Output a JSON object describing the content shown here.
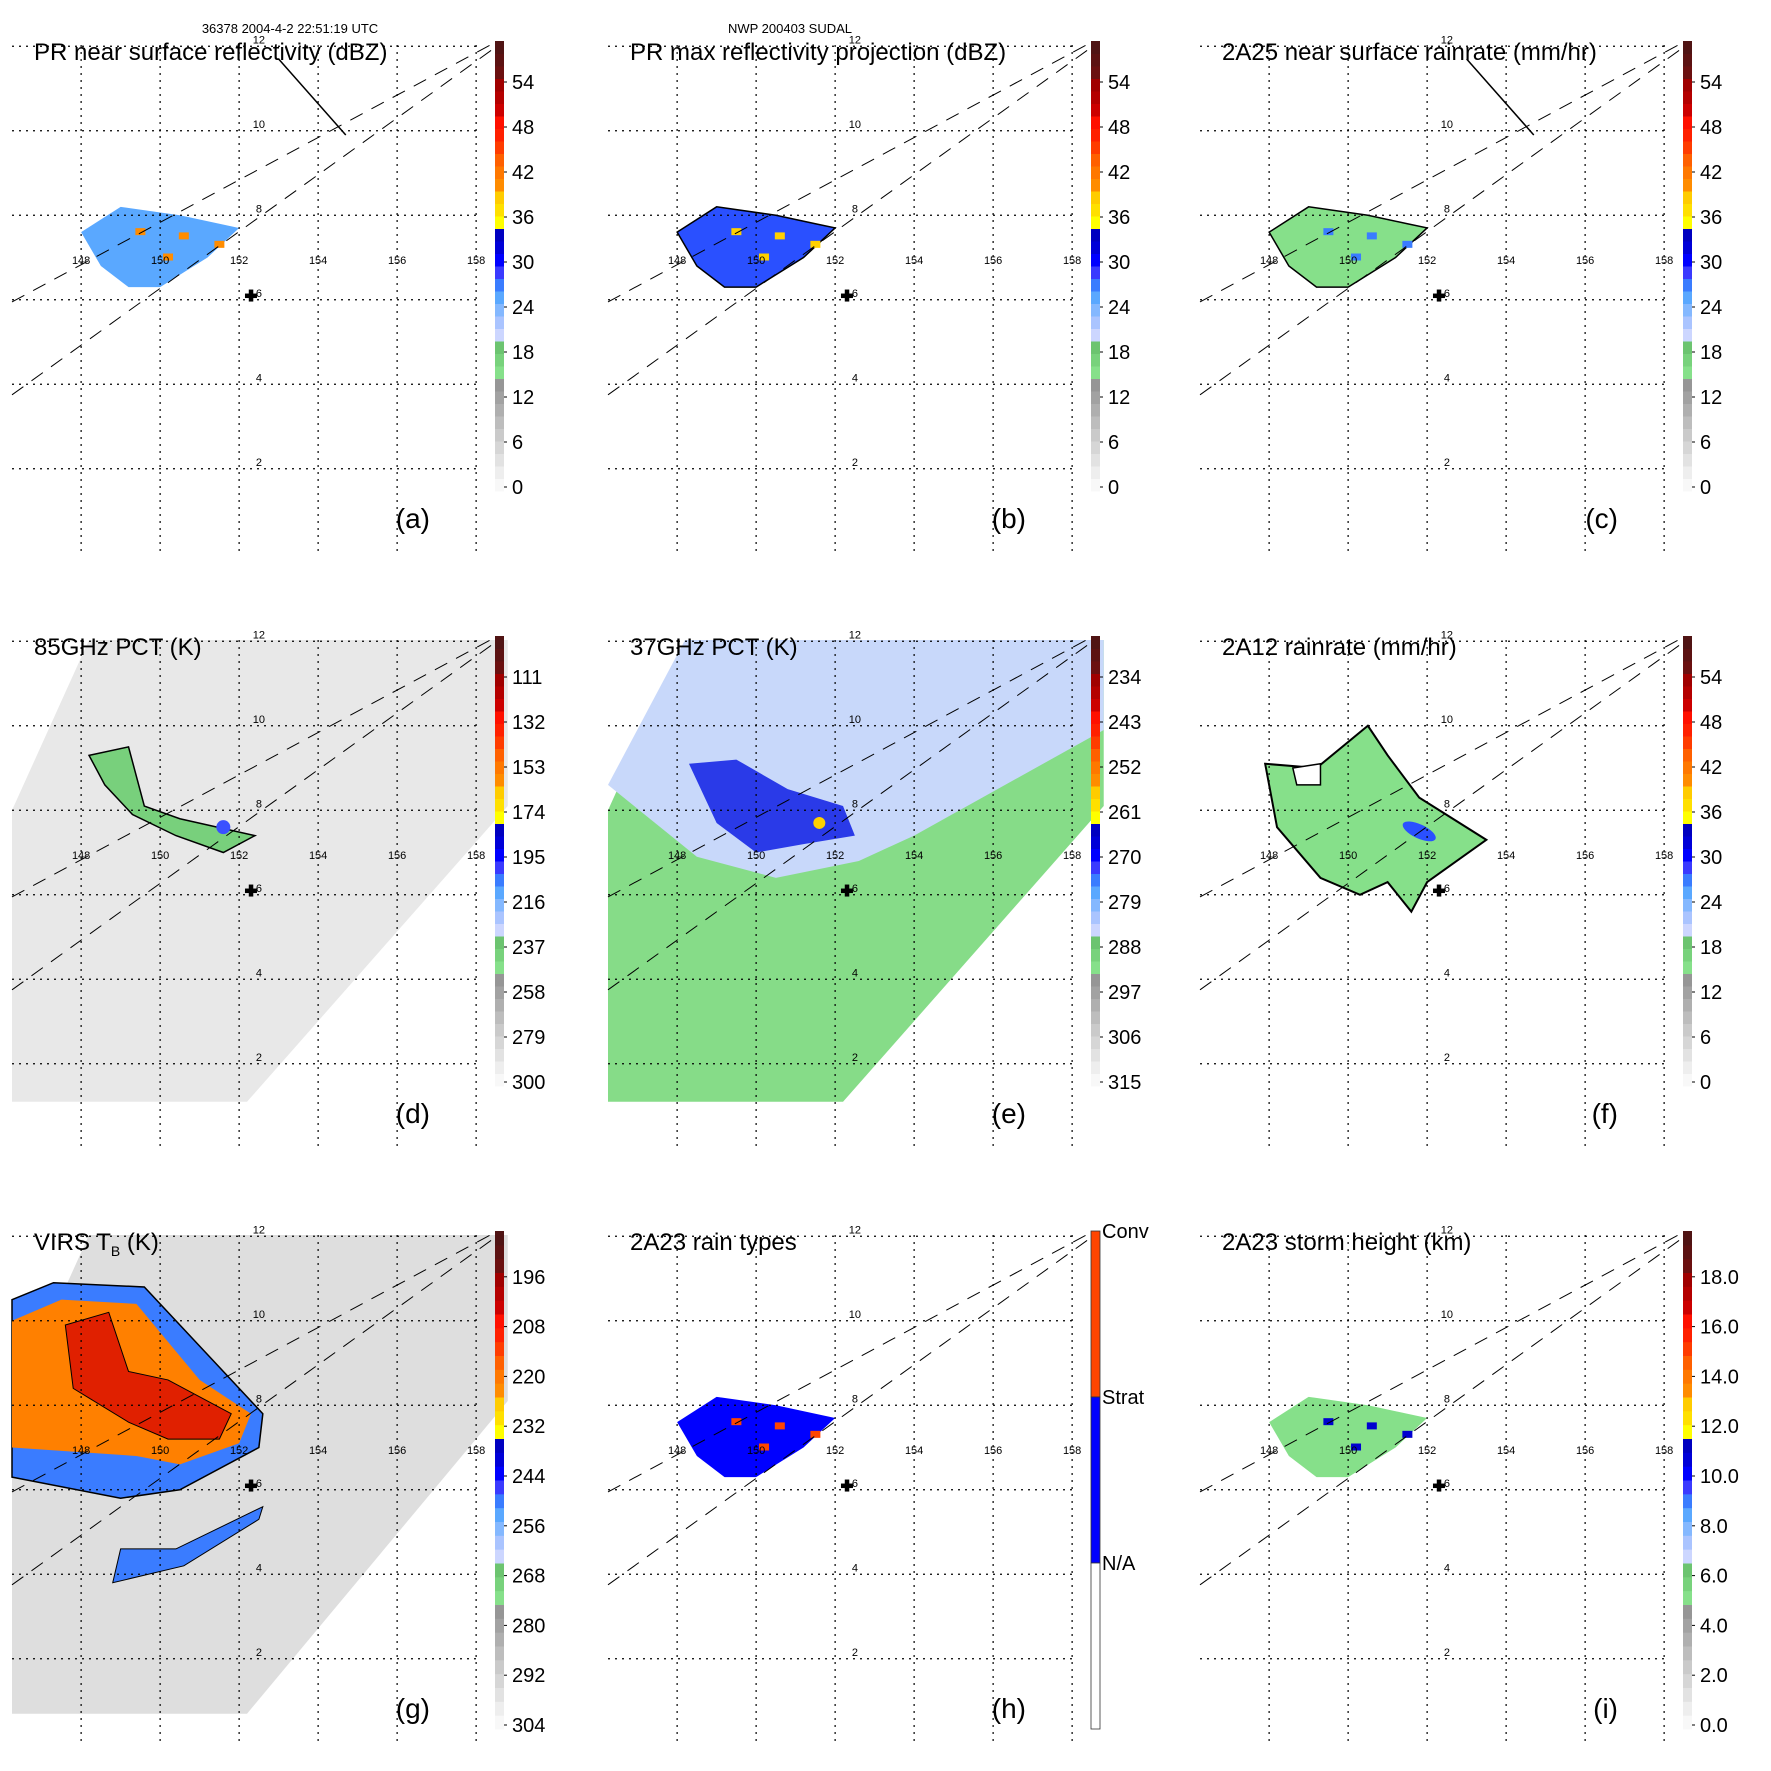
{
  "header": {
    "left": "36378 2004-4-2 22:51:19 UTC",
    "center": "NWP 200403 SUDAL"
  },
  "map_grid": {
    "lon_ticks": [
      "148",
      "150",
      "152",
      "154",
      "156",
      "158"
    ],
    "lat_ticks": [
      "12",
      "10",
      "8",
      "6",
      "4",
      "2"
    ],
    "lon_values": [
      148,
      150,
      152,
      154,
      156,
      158
    ],
    "lat_values": [
      12,
      10,
      8,
      6,
      4,
      2
    ],
    "lon_range": [
      146.25,
      158.8
    ],
    "lat_range": [
      0.7,
      12.2
    ],
    "storm_center_marker": {
      "lon": 152.3,
      "lat": 6.1,
      "symbol": "+"
    },
    "swath_edges": [
      {
        "from": [
          146.2,
          5.9
        ],
        "to": [
          158.6,
          12.1
        ]
      },
      {
        "from": [
          146.2,
          3.8
        ],
        "to": [
          158.6,
          12.1
        ]
      }
    ]
  },
  "chart_data": [
    {
      "type": "heatmap",
      "id": "a",
      "panel_label": "(a)",
      "title": "PR near surface reflectivity (dBZ)",
      "colorbar": {
        "ticks": [
          "54",
          "48",
          "42",
          "36",
          "30",
          "24",
          "18",
          "12",
          "6",
          "0"
        ],
        "tick_values": [
          54,
          48,
          42,
          36,
          30,
          24,
          18,
          12,
          6,
          0
        ],
        "range": [
          0,
          60
        ],
        "segments": [
          {
            "from": 0,
            "to": 16,
            "color_stops": [
              "#f7f7f7",
              "#969696"
            ]
          },
          {
            "from": 16,
            "to": 20,
            "color_stops": [
              "#86e08a",
              "#69bd6d"
            ]
          },
          {
            "from": 20,
            "to": 34,
            "color_stops": [
              "#ccd6ff",
              "#3a3aff"
            ]
          },
          {
            "from": 34,
            "to": 35.5,
            "color_stops": [
              "#0000ff",
              "#0000c8"
            ]
          },
          {
            "from": 35.5,
            "to": 40,
            "color_stops": [
              "#ffff00",
              "#ffcc00"
            ]
          },
          {
            "from": 40,
            "to": 44,
            "color_stops": [
              "#ff8c00",
              "#ff7000"
            ]
          },
          {
            "from": 44,
            "to": 49,
            "color_stops": [
              "#ff4000",
              "#ff1a00"
            ]
          },
          {
            "from": 49,
            "to": 55,
            "color_stops": [
              "#cc0000",
              "#aa0000"
            ]
          },
          {
            "from": 55,
            "to": 60,
            "color_stops": [
              "#6b1010",
              "#551515"
            ]
          }
        ]
      },
      "cross_section_line": {
        "from": [
          153.0,
          11.7
        ],
        "to": [
          154.7,
          9.9
        ]
      }
    },
    {
      "type": "heatmap",
      "id": "b",
      "panel_label": "(b)",
      "title": "PR max reflectivity projection (dBZ)",
      "colorbar": {
        "ticks": [
          "54",
          "48",
          "42",
          "36",
          "30",
          "24",
          "18",
          "12",
          "6",
          "0"
        ],
        "tick_values": [
          54,
          48,
          42,
          36,
          30,
          24,
          18,
          12,
          6,
          0
        ],
        "range": [
          0,
          60
        ]
      }
    },
    {
      "type": "heatmap",
      "id": "c",
      "panel_label": "(c)",
      "title": "2A25 near surface rainrate (mm/hr)",
      "colorbar": {
        "ticks": [
          "54",
          "48",
          "42",
          "36",
          "30",
          "24",
          "18",
          "12",
          "6",
          "0"
        ],
        "tick_values": [
          54,
          48,
          42,
          36,
          30,
          24,
          18,
          12,
          6,
          0
        ],
        "range": [
          0,
          60
        ]
      },
      "cross_section_line": {
        "from": [
          153.0,
          11.7
        ],
        "to": [
          154.7,
          9.9
        ]
      }
    },
    {
      "type": "heatmap",
      "id": "d",
      "panel_label": "(d)",
      "title": "85GHz PCT (K)",
      "colorbar": {
        "ticks": [
          "111",
          "132",
          "153",
          "174",
          "195",
          "216",
          "237",
          "258",
          "279",
          "300"
        ],
        "tick_values": [
          111,
          132,
          153,
          174,
          195,
          216,
          237,
          258,
          279,
          300
        ],
        "range": [
          300,
          90
        ]
      }
    },
    {
      "type": "heatmap",
      "id": "e",
      "panel_label": "(e)",
      "title": "37GHz PCT (K)",
      "colorbar": {
        "ticks": [
          "234",
          "243",
          "252",
          "261",
          "270",
          "279",
          "288",
          "297",
          "306",
          "315"
        ],
        "tick_values": [
          234,
          243,
          252,
          261,
          270,
          279,
          288,
          297,
          306,
          315
        ],
        "range": [
          315,
          225
        ]
      }
    },
    {
      "type": "heatmap",
      "id": "f",
      "panel_label": "(f)",
      "title": "2A12 rainrate (mm/hr)",
      "colorbar": {
        "ticks": [
          "54",
          "48",
          "42",
          "36",
          "30",
          "24",
          "18",
          "12",
          "6",
          "0"
        ],
        "tick_values": [
          54,
          48,
          42,
          36,
          30,
          24,
          18,
          12,
          6,
          0
        ],
        "range": [
          0,
          60
        ]
      }
    },
    {
      "type": "heatmap",
      "id": "g",
      "panel_label": "(g)",
      "title": "VIRS T",
      "title_sub": "B",
      "title_suffix": " (K)",
      "colorbar": {
        "ticks": [
          "196",
          "208",
          "220",
          "232",
          "244",
          "256",
          "268",
          "280",
          "292",
          "304"
        ],
        "tick_values": [
          196,
          208,
          220,
          232,
          244,
          256,
          268,
          280,
          292,
          304
        ],
        "range": [
          304,
          184
        ]
      }
    },
    {
      "type": "heatmap",
      "id": "h",
      "panel_label": "(h)",
      "title": "2A23 rain types",
      "colorbar": {
        "categorical": true,
        "ticks": [
          "Conv",
          "Strat",
          "N/A"
        ],
        "categories": [
          {
            "label": "Conv",
            "color": "#ff4500"
          },
          {
            "label": "Strat",
            "color": "#0000ff"
          },
          {
            "label": "N/A",
            "color": "#ffffff"
          }
        ]
      }
    },
    {
      "type": "heatmap",
      "id": "i",
      "panel_label": "(i)",
      "title": "2A23 storm height (km)",
      "colorbar": {
        "ticks": [
          "18.0",
          "16.0",
          "14.0",
          "12.0",
          "10.0",
          "8.0",
          "6.0",
          "4.0",
          "2.0",
          "0.0"
        ],
        "tick_values": [
          18,
          16,
          14,
          12,
          10,
          8,
          6,
          4,
          2,
          0
        ],
        "range": [
          0,
          20
        ]
      }
    }
  ]
}
